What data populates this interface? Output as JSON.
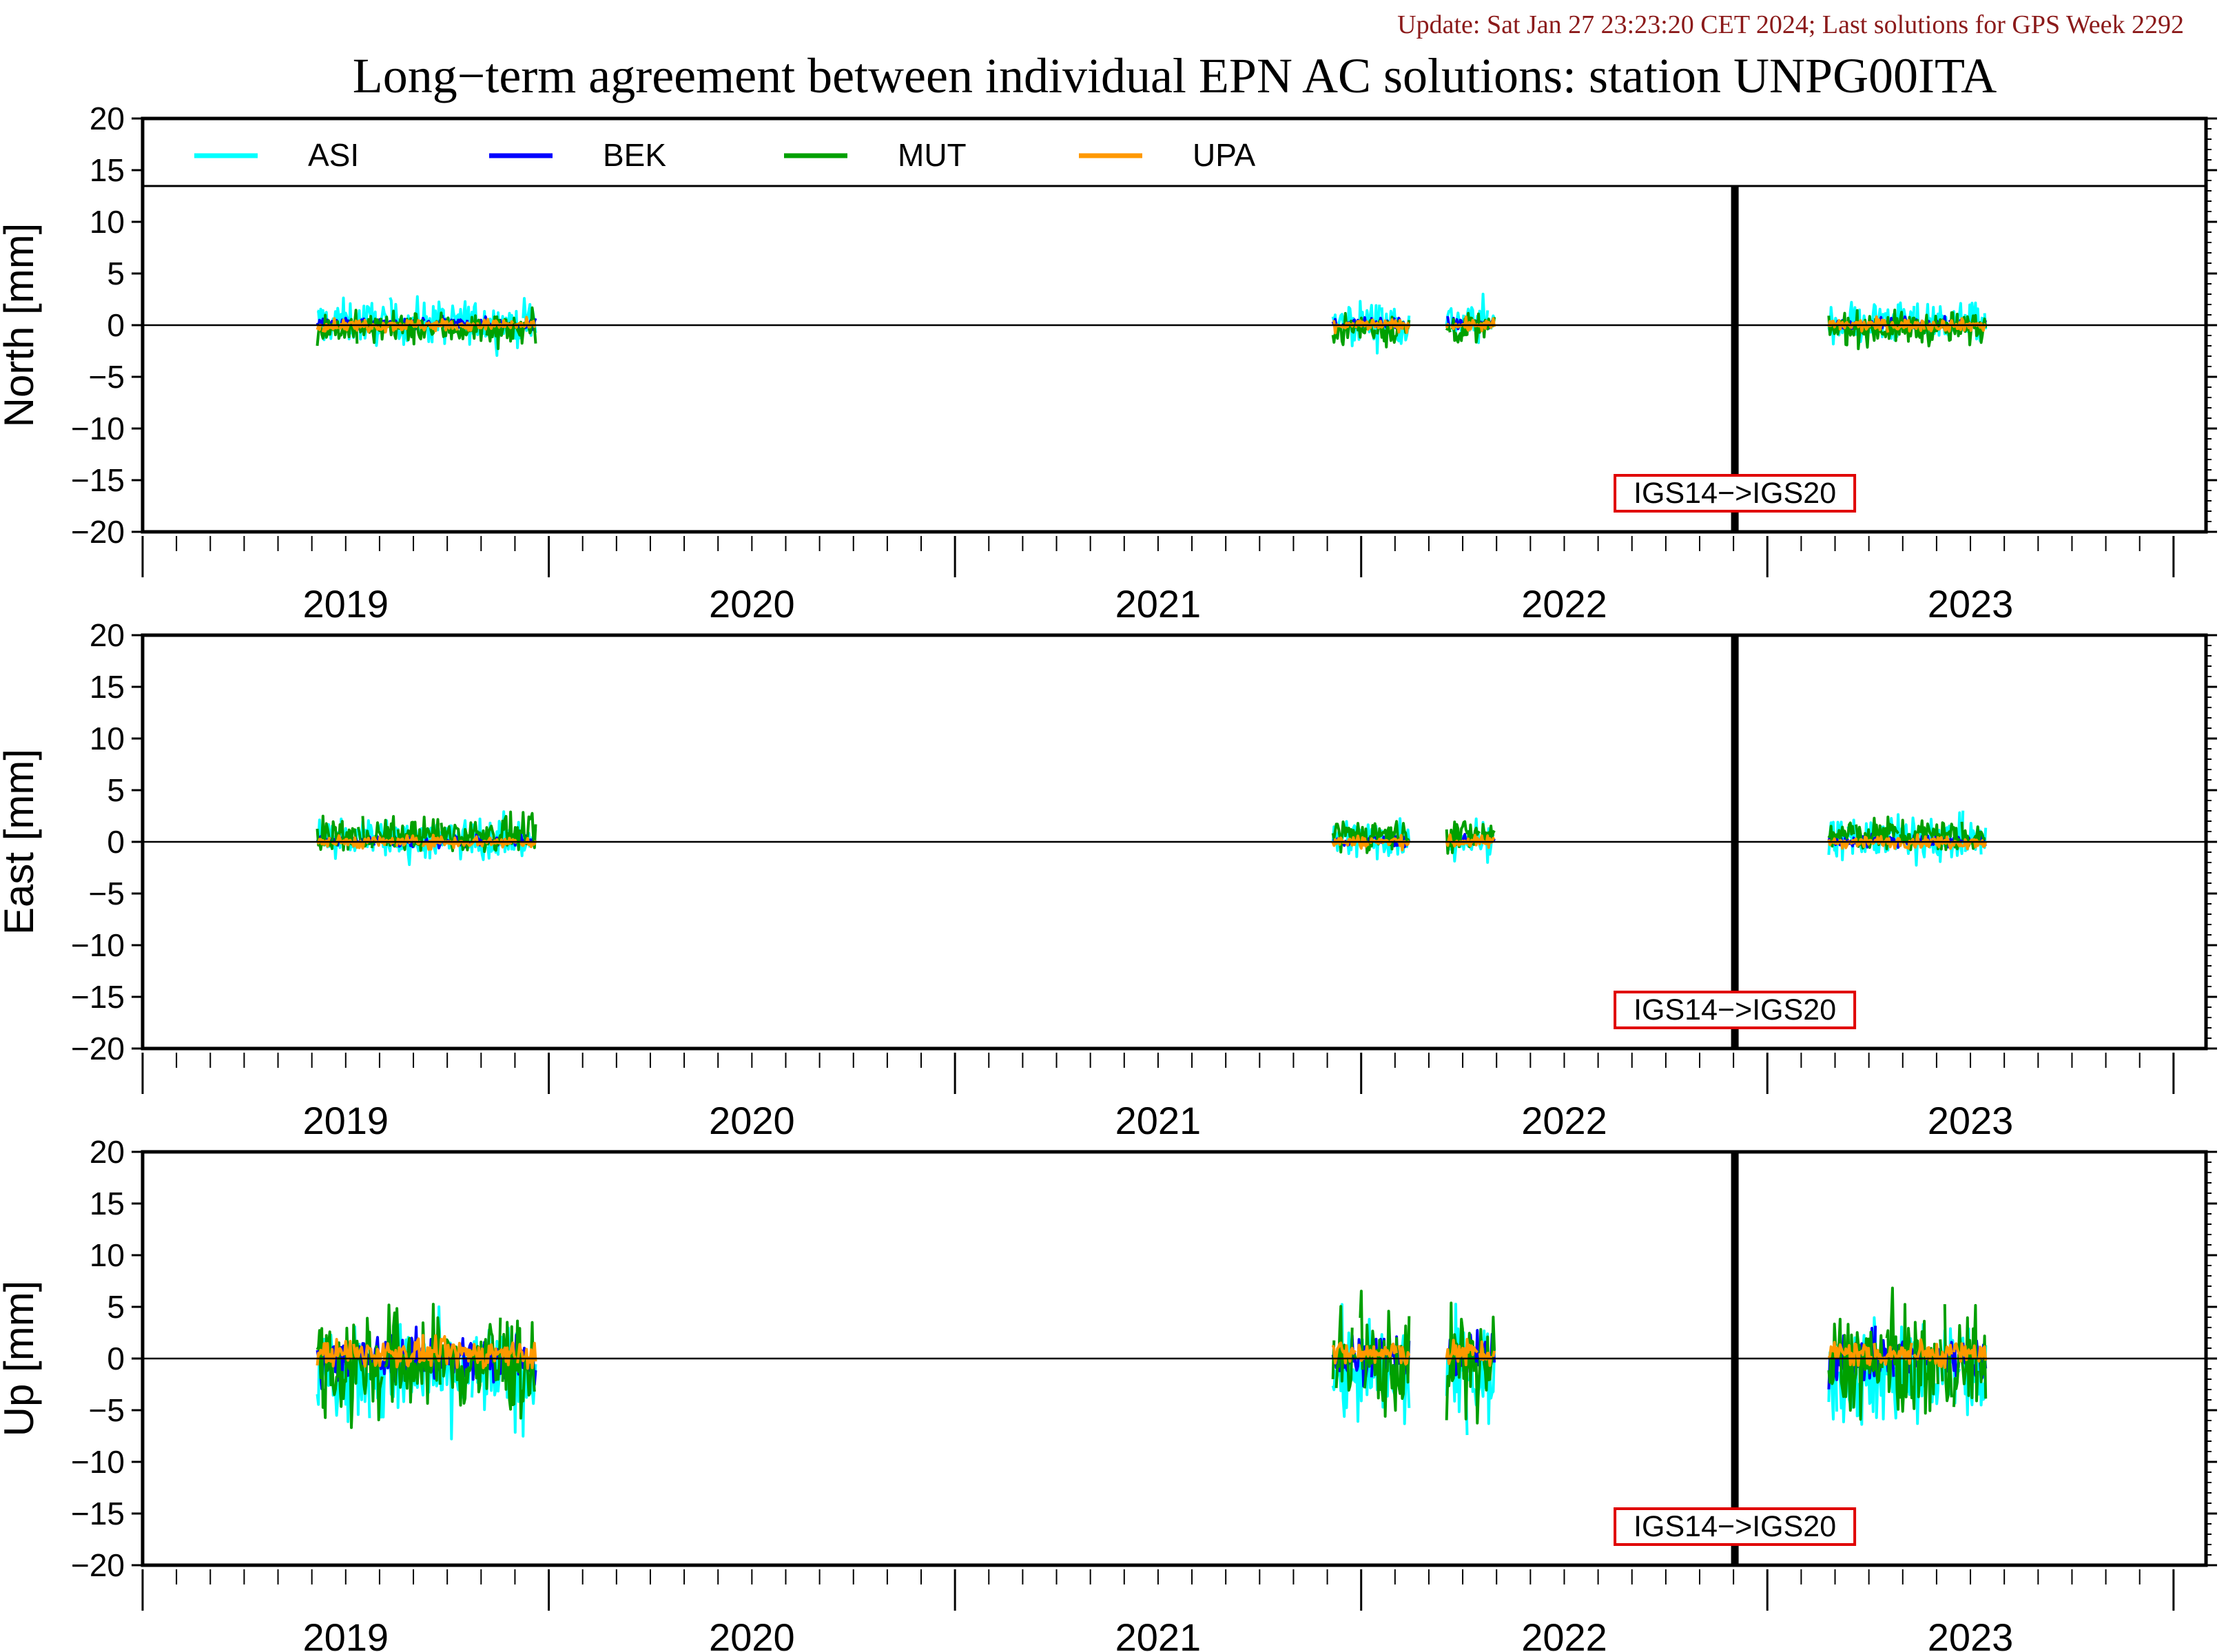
{
  "update_text": "Update: Sat Jan 27 23:23:20 CET 2024; Last solutions for GPS Week 2292",
  "title": "Long−term agreement between individual EPN AC solutions: station UNPG00ITA",
  "colors": {
    "update": "#8b1a1a",
    "frame": "#000000",
    "annotation_border": "#e00000",
    "ASI": "#00ffff",
    "BEK": "#0000ff",
    "MUT": "#00a000",
    "UPA": "#ff9900"
  },
  "chart_data": [
    {
      "type": "line",
      "panel": "north",
      "ylabel": "North [mm]",
      "ylim": [
        -20,
        20
      ],
      "yticks": [
        "20",
        "15",
        "10",
        "5",
        "0",
        "−5",
        "−10",
        "−15",
        "−20"
      ],
      "xlim": [
        2018.5,
        2023.58
      ],
      "xtick_labels": [
        "2019",
        "2020",
        "2021",
        "2022",
        "2023"
      ],
      "legend": [
        "ASI",
        "BEK",
        "MUT",
        "UPA"
      ],
      "legend_position": "top",
      "annotation": {
        "text": "IGS14−>IGS20",
        "x": 2022.42
      },
      "series": [
        {
          "name": "ASI",
          "spread": 3.2,
          "offset": 0.3
        },
        {
          "name": "BEK",
          "spread": 0.9,
          "offset": 0.1
        },
        {
          "name": "MUT",
          "spread": 2.4,
          "offset": -0.3
        },
        {
          "name": "UPA",
          "spread": 0.9,
          "offset": 0.0
        }
      ]
    },
    {
      "type": "line",
      "panel": "east",
      "ylabel": "East [mm]",
      "ylim": [
        -20,
        20
      ],
      "yticks": [
        "20",
        "15",
        "10",
        "5",
        "0",
        "−5",
        "−10",
        "−15",
        "−20"
      ],
      "xlim": [
        2018.5,
        2023.58
      ],
      "xtick_labels": [
        "2019",
        "2020",
        "2021",
        "2022",
        "2023"
      ],
      "annotation": {
        "text": "IGS14−>IGS20",
        "x": 2022.42
      },
      "series": [
        {
          "name": "ASI",
          "spread": 3.0,
          "offset": 0.3
        },
        {
          "name": "BEK",
          "spread": 0.9,
          "offset": 0.1
        },
        {
          "name": "MUT",
          "spread": 2.5,
          "offset": 0.7
        },
        {
          "name": "UPA",
          "spread": 0.9,
          "offset": 0.0
        }
      ]
    },
    {
      "type": "line",
      "panel": "up",
      "ylabel": "Up [mm]",
      "ylim": [
        -20,
        20
      ],
      "yticks": [
        "20",
        "15",
        "10",
        "5",
        "0",
        "−5",
        "−10",
        "−15",
        "−20"
      ],
      "xlim": [
        2018.5,
        2023.58
      ],
      "xtick_labels": [
        "2019",
        "2020",
        "2021",
        "2022",
        "2023"
      ],
      "annotation": {
        "text": "IGS14−>IGS20",
        "x": 2022.42
      },
      "series": [
        {
          "name": "ASI",
          "spread": 7.5,
          "offset": -1.5
        },
        {
          "name": "BEK",
          "spread": 3.5,
          "offset": 0.0
        },
        {
          "name": "MUT",
          "spread": 8.0,
          "offset": -0.5
        },
        {
          "name": "UPA",
          "spread": 2.0,
          "offset": 0.5
        }
      ]
    }
  ],
  "data_gaps": [
    {
      "from": 2018.5,
      "to": 2018.93
    },
    {
      "from": 2019.47,
      "to": 2021.43
    },
    {
      "from": 2021.62,
      "to": 2021.71
    },
    {
      "from": 2021.83,
      "to": 2022.65
    },
    {
      "from": 2023.04,
      "to": 2023.55
    }
  ]
}
